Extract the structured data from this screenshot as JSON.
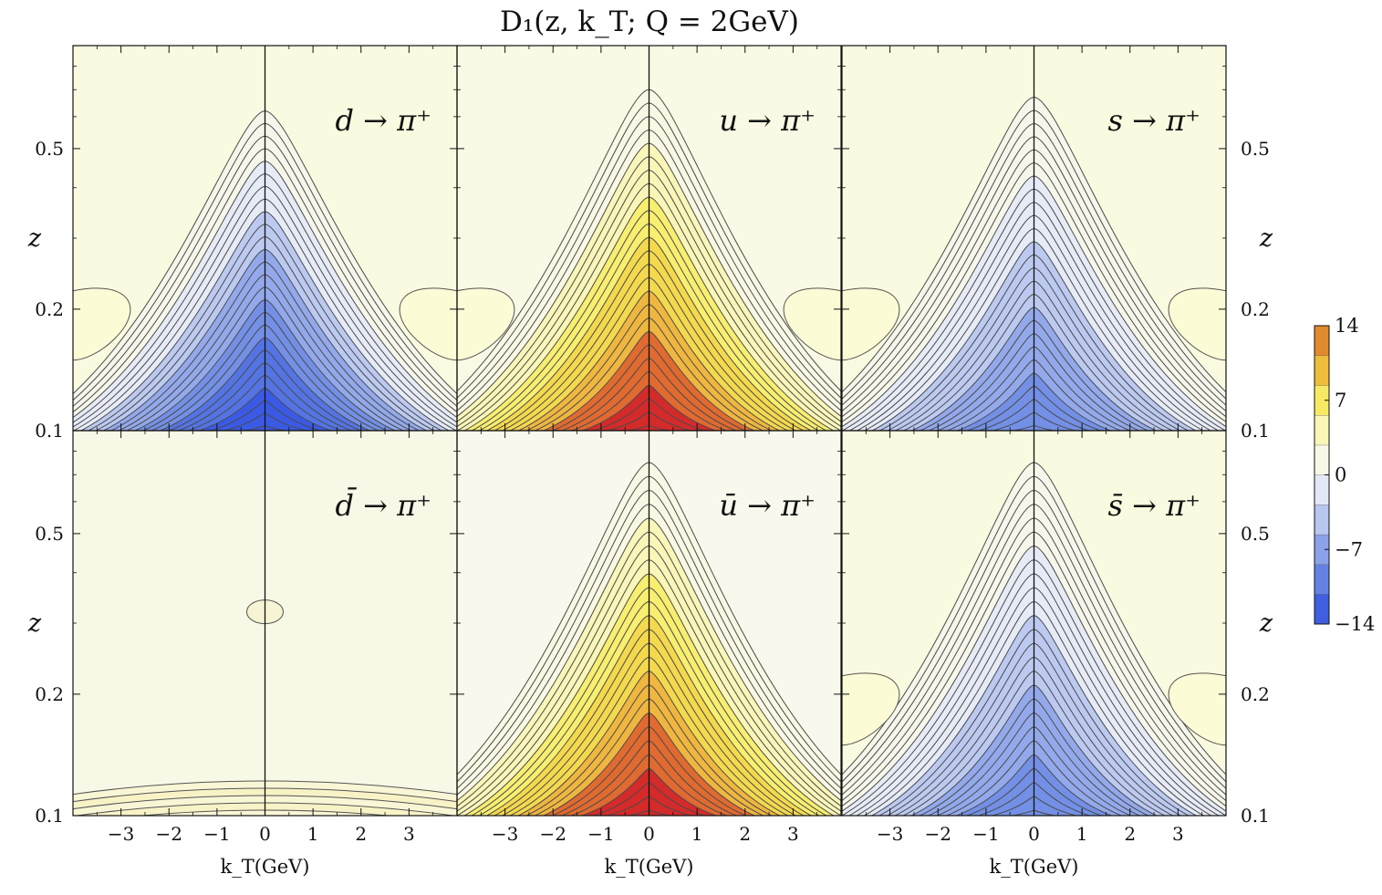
{
  "figure_title": "D₁(z, k_T; Q = 2GeV)",
  "chart_data": {
    "type": "heatmap",
    "subtype": "filled-contour",
    "title": "D₁(z, k_T; Q = 2GeV)",
    "xlabel": "k_T(GeV)",
    "ylabel": "z",
    "x_ticks": [
      -3,
      -2,
      -1,
      0,
      1,
      2,
      3
    ],
    "x_tick_labels": [
      "−3",
      "−2",
      "−1",
      "0",
      "1",
      "2",
      "3"
    ],
    "xlim": [
      -4,
      4
    ],
    "y_scale": "log",
    "y_ticks": [
      0.1,
      0.2,
      0.5
    ],
    "y_tick_labels": [
      "0.1",
      "0.2",
      "0.5"
    ],
    "ylim": [
      0.1,
      0.9
    ],
    "colorbar": {
      "range": [
        -14,
        14
      ],
      "tick_values": [
        14,
        7,
        0,
        -7,
        -14
      ],
      "tick_labels": [
        "14",
        "7",
        "0",
        "−7",
        "−14"
      ],
      "levels": [
        {
          "from": -14,
          "to": -11.2,
          "color": "#3f5fe0"
        },
        {
          "from": -11.2,
          "to": -8.4,
          "color": "#6382e4"
        },
        {
          "from": -8.4,
          "to": -5.6,
          "color": "#8ba2ea"
        },
        {
          "from": -5.6,
          "to": -2.8,
          "color": "#b8c6f0"
        },
        {
          "from": -2.8,
          "to": 0,
          "color": "#e3e8f6"
        },
        {
          "from": 0,
          "to": 2.8,
          "color": "#f8f8e8"
        },
        {
          "from": 2.8,
          "to": 5.6,
          "color": "#f9f6b6"
        },
        {
          "from": 5.6,
          "to": 8.4,
          "color": "#f7ea63"
        },
        {
          "from": 8.4,
          "to": 11.2,
          "color": "#eebd3c"
        },
        {
          "from": 11.2,
          "to": 14,
          "color": "#e28a2e"
        }
      ]
    },
    "panels": [
      {
        "label": "d → π⁺",
        "row": 0,
        "col": 0,
        "peak_value": -14,
        "peak_z": 0.1,
        "peak_color": "#2c4ee8",
        "background": "#fafae0",
        "outer_contour_top_z": 0.62,
        "side_lobes": true
      },
      {
        "label": "u → π⁺",
        "row": 0,
        "col": 1,
        "peak_value": 14,
        "peak_z": 0.1,
        "peak_color": "#d42a2a",
        "background": "#f9f9e6",
        "outer_contour_top_z": 0.7,
        "side_lobes": true
      },
      {
        "label": "s → π⁺",
        "row": 0,
        "col": 2,
        "peak_value": -10,
        "peak_z": 0.13,
        "peak_color": "#6d8ee6",
        "background": "#fafae0",
        "outer_contour_top_z": 0.67,
        "side_lobes": true
      },
      {
        "label": "d̄ → π⁺",
        "row": 1,
        "col": 0,
        "peak_value": 1,
        "peak_z": 0.1,
        "peak_color": "#f8f4c8",
        "background": "#f8f8e6",
        "outer_contour_top_z": 0.12,
        "side_lobes": false
      },
      {
        "label": "ū → π⁺",
        "row": 1,
        "col": 1,
        "peak_value": 14,
        "peak_z": 0.1,
        "peak_color": "#d42a2a",
        "background": "#f8f8ec",
        "outer_contour_top_z": 0.75,
        "side_lobes": false
      },
      {
        "label": "s̄ → π⁺",
        "row": 1,
        "col": 2,
        "peak_value": -10,
        "peak_z": 0.13,
        "peak_color": "#6d8ee6",
        "background": "#fafae0",
        "outer_contour_top_z": 0.75,
        "side_lobes": true
      }
    ]
  }
}
